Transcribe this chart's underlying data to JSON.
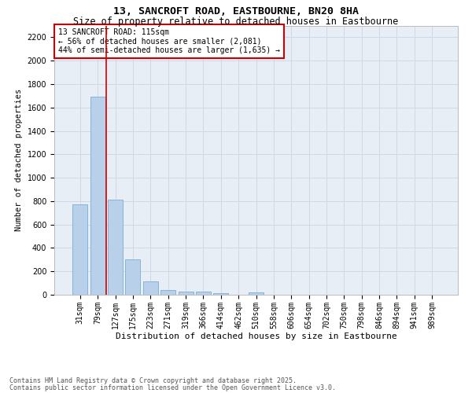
{
  "title": "13, SANCROFT ROAD, EASTBOURNE, BN20 8HA",
  "subtitle": "Size of property relative to detached houses in Eastbourne",
  "xlabel": "Distribution of detached houses by size in Eastbourne",
  "ylabel": "Number of detached properties",
  "categories": [
    "31sqm",
    "79sqm",
    "127sqm",
    "175sqm",
    "223sqm",
    "271sqm",
    "319sqm",
    "366sqm",
    "414sqm",
    "462sqm",
    "510sqm",
    "558sqm",
    "606sqm",
    "654sqm",
    "702sqm",
    "750sqm",
    "798sqm",
    "846sqm",
    "894sqm",
    "941sqm",
    "989sqm"
  ],
  "values": [
    770,
    1690,
    810,
    305,
    115,
    40,
    30,
    25,
    15,
    0,
    20,
    0,
    0,
    0,
    0,
    0,
    0,
    0,
    0,
    0,
    0
  ],
  "bar_color": "#b8d0ea",
  "bar_edge_color": "#7aaed4",
  "marker_line_color": "#cc0000",
  "annotation_box_color": "#cc0000",
  "annotation_lines": [
    "13 SANCROFT ROAD: 115sqm",
    "← 56% of detached houses are smaller (2,081)",
    "44% of semi-detached houses are larger (1,635) →"
  ],
  "ylim": [
    0,
    2300
  ],
  "yticks": [
    0,
    200,
    400,
    600,
    800,
    1000,
    1200,
    1400,
    1600,
    1800,
    2000,
    2200
  ],
  "grid_color": "#d0d8e8",
  "background_color": "#e8eef6",
  "footer_line1": "Contains HM Land Registry data © Crown copyright and database right 2025.",
  "footer_line2": "Contains public sector information licensed under the Open Government Licence v3.0.",
  "title_fontsize": 9.5,
  "subtitle_fontsize": 8.5,
  "xlabel_fontsize": 8,
  "ylabel_fontsize": 7.5,
  "tick_fontsize": 7,
  "annotation_fontsize": 7,
  "footer_fontsize": 6
}
